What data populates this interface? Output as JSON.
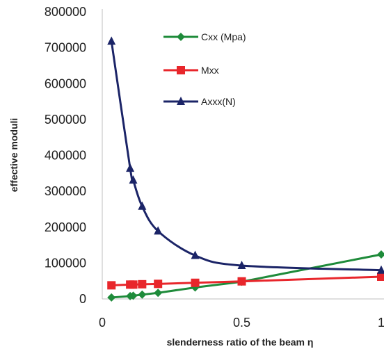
{
  "chart_data": {
    "type": "line",
    "xlabel": "slenderness ratio of the beam η",
    "ylabel": "effective moduli",
    "xlim": [
      0,
      1
    ],
    "ylim": [
      0,
      800000
    ],
    "x_ticks": [
      "0",
      "0.5",
      "1"
    ],
    "y_ticks": [
      "0",
      "100000",
      "200000",
      "300000",
      "400000",
      "500000",
      "600000",
      "700000",
      "800000"
    ],
    "legend_position": "top-right, inside plot",
    "grid": false,
    "series": [
      {
        "name": "Cxx (Mpa)",
        "color": "#1e8b3a",
        "marker": "diamond",
        "smooth": false,
        "points": [
          [
            0.033,
            4000
          ],
          [
            0.1,
            8000
          ],
          [
            0.111,
            9000
          ],
          [
            0.143,
            12000
          ],
          [
            0.2,
            17000
          ],
          [
            0.333,
            32000
          ],
          [
            0.5,
            48000
          ],
          [
            1.0,
            124000
          ]
        ]
      },
      {
        "name": "Mxx",
        "color": "#e8262b",
        "marker": "square",
        "smooth": false,
        "points": [
          [
            0.033,
            38000
          ],
          [
            0.1,
            40000
          ],
          [
            0.111,
            40000
          ],
          [
            0.143,
            41000
          ],
          [
            0.2,
            42000
          ],
          [
            0.333,
            45000
          ],
          [
            0.5,
            49000
          ],
          [
            1.0,
            62000
          ]
        ]
      },
      {
        "name": "Axxx(N)",
        "color": "#1b2467",
        "marker": "triangle",
        "smooth": true,
        "points": [
          [
            0.033,
            718000
          ],
          [
            0.1,
            364000
          ],
          [
            0.111,
            331000
          ],
          [
            0.143,
            258000
          ],
          [
            0.2,
            189000
          ],
          [
            0.333,
            121000
          ],
          [
            0.5,
            93000
          ],
          [
            1.0,
            80000
          ]
        ]
      }
    ]
  }
}
